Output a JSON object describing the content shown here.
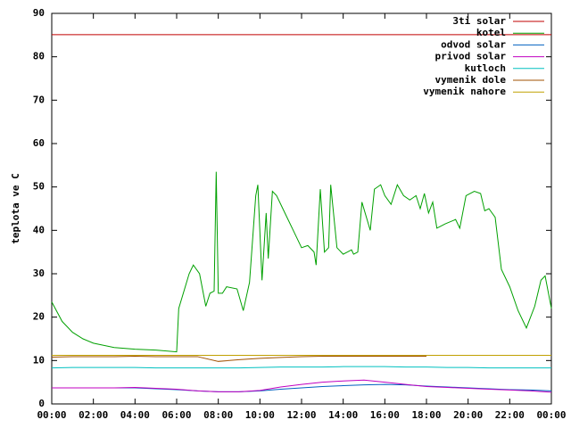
{
  "chart_data": {
    "type": "line",
    "ylabel": "teplota ve C",
    "xlim": [
      0,
      24
    ],
    "ylim": [
      0,
      90
    ],
    "xticks": [
      {
        "value": 0,
        "label": "00:00"
      },
      {
        "value": 2,
        "label": "02:00"
      },
      {
        "value": 4,
        "label": "04:00"
      },
      {
        "value": 6,
        "label": "06:00"
      },
      {
        "value": 8,
        "label": "08:00"
      },
      {
        "value": 10,
        "label": "10:00"
      },
      {
        "value": 12,
        "label": "12:00"
      },
      {
        "value": 14,
        "label": "14:00"
      },
      {
        "value": 16,
        "label": "16:00"
      },
      {
        "value": 18,
        "label": "18:00"
      },
      {
        "value": 20,
        "label": "20:00"
      },
      {
        "value": 22,
        "label": "22:00"
      },
      {
        "value": 24,
        "label": "00:00"
      }
    ],
    "yticks": [
      0,
      10,
      20,
      30,
      40,
      50,
      60,
      70,
      80,
      90
    ],
    "legend": "top-right",
    "x": [
      0,
      1,
      2,
      3,
      4,
      5,
      6,
      7,
      8,
      9,
      10,
      11,
      12,
      13,
      14,
      15,
      16,
      17,
      18,
      19,
      20,
      21,
      22,
      23,
      24
    ],
    "series": [
      {
        "name": "3ti solar",
        "color": "#c00000",
        "values": [
          85.1,
          85.1,
          85.1,
          85.1,
          85.1,
          85.1,
          85.1,
          85.1,
          85.1,
          85.1,
          85.1,
          85.1,
          85.1,
          85.1,
          85.1,
          85.1,
          85.1,
          85.1,
          85.1,
          85.1,
          85.1,
          85.1,
          85.1,
          85.1,
          85.1
        ]
      },
      {
        "name": "kotel",
        "color": "#00a000",
        "x": [
          0,
          0.5,
          1,
          1.5,
          2,
          3,
          4,
          5,
          6,
          6.1,
          6.6,
          6.8,
          7.1,
          7.4,
          7.6,
          7.8,
          7.9,
          8.0,
          8.2,
          8.4,
          8.9,
          9.2,
          9.5,
          9.8,
          9.9,
          10.1,
          10.3,
          10.4,
          10.6,
          10.8,
          11.2,
          11.6,
          12.0,
          12.3,
          12.6,
          12.7,
          12.9,
          13.1,
          13.3,
          13.4,
          13.7,
          14.0,
          14.2,
          14.4,
          14.5,
          14.7,
          14.9,
          15.3,
          15.5,
          15.8,
          16.0,
          16.3,
          16.6,
          16.9,
          17.2,
          17.5,
          17.7,
          17.9,
          18.1,
          18.3,
          18.5,
          18.9,
          19.4,
          19.6,
          19.9,
          20.3,
          20.6,
          20.8,
          21.0,
          21.3,
          21.6,
          22.0,
          22.4,
          22.8,
          23.2,
          23.5,
          23.7,
          24.0
        ],
        "values": [
          23.5,
          19,
          16.5,
          15,
          14,
          13,
          12.6,
          12.4,
          12,
          22,
          30,
          32,
          30,
          22.5,
          25.5,
          26,
          53.5,
          25.5,
          25.5,
          27,
          26.5,
          21.5,
          28,
          48,
          50.5,
          28.5,
          44,
          33.5,
          49,
          48,
          44,
          40,
          36,
          36.5,
          35,
          32,
          49.5,
          35,
          36,
          50.5,
          36,
          34.5,
          35,
          35.5,
          34.5,
          35,
          46.5,
          40,
          49.5,
          50.5,
          48,
          46,
          50.5,
          48,
          47,
          48,
          45,
          48.5,
          44,
          46.5,
          40.5,
          41.5,
          42.5,
          40.5,
          48,
          49,
          48.5,
          44.5,
          45,
          43,
          31,
          27,
          21.5,
          17.5,
          22.5,
          28.5,
          29.5,
          22
        ]
      },
      {
        "name": "odvod solar",
        "color": "#0060c0",
        "values": [
          3.7,
          3.7,
          3.7,
          3.7,
          3.7,
          3.5,
          3.3,
          3.0,
          2.8,
          2.8,
          3.0,
          3.4,
          3.7,
          4.0,
          4.2,
          4.4,
          4.5,
          4.4,
          4.1,
          3.9,
          3.7,
          3.5,
          3.3,
          3.2,
          3.0
        ]
      },
      {
        "name": "privod solar",
        "color": "#c000c0",
        "values": [
          3.7,
          3.7,
          3.7,
          3.7,
          3.8,
          3.6,
          3.4,
          3.0,
          2.8,
          2.8,
          3.1,
          3.9,
          4.5,
          5.0,
          5.3,
          5.5,
          5.0,
          4.5,
          4.0,
          3.8,
          3.6,
          3.4,
          3.2,
          3.0,
          2.7
        ]
      },
      {
        "name": "kutloch",
        "color": "#00c0c0",
        "values": [
          8.3,
          8.4,
          8.4,
          8.4,
          8.4,
          8.3,
          8.3,
          8.3,
          8.3,
          8.3,
          8.4,
          8.5,
          8.5,
          8.5,
          8.6,
          8.6,
          8.6,
          8.5,
          8.5,
          8.4,
          8.4,
          8.3,
          8.3,
          8.3,
          8.3
        ]
      },
      {
        "name": "vymenik dole",
        "color": "#a05000",
        "values": [
          10.8,
          10.9,
          10.9,
          10.9,
          11.0,
          10.9,
          10.9,
          10.9,
          9.8,
          10.2,
          10.5,
          10.7,
          10.9,
          11.0,
          11.0,
          11.0,
          11.0,
          11.0,
          11.0,
          null,
          null,
          null,
          null,
          null,
          null
        ]
      },
      {
        "name": "vymenik nahore",
        "color": "#c0a000",
        "values": [
          11.2,
          11.2,
          11.2,
          11.2,
          11.2,
          11.2,
          11.2,
          11.2,
          11.2,
          11.2,
          11.2,
          11.2,
          11.2,
          11.2,
          11.2,
          11.2,
          11.2,
          11.2,
          11.2,
          11.2,
          11.2,
          11.2,
          11.2,
          11.2,
          11.2
        ]
      }
    ]
  }
}
